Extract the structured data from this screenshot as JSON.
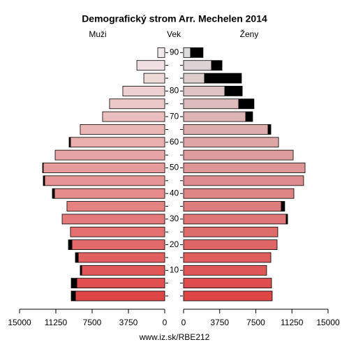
{
  "chart_data": {
    "type": "pyramid",
    "title": "Demografický strom Arr. Mechelen 2014",
    "axis_label": "Vek",
    "footer": "www.iz.sk/RBE212",
    "categories": [
      null,
      null,
      "10",
      null,
      "20",
      null,
      "30",
      null,
      "40",
      null,
      "50",
      null,
      "60",
      null,
      "70",
      null,
      "80",
      null,
      null,
      "90"
    ],
    "xlim": [
      0,
      15000
    ],
    "xticks": [
      0,
      3750,
      7500,
      11250,
      15000
    ],
    "extra_color": "#000000",
    "series": [
      {
        "name": "Muži",
        "side": "left",
        "colors": [
          "#de4646",
          "#f0eaea"
        ],
        "values": [
          9230,
          9090,
          8580,
          8940,
          9590,
          9740,
          10600,
          10100,
          11390,
          12400,
          12550,
          11320,
          9740,
          8730,
          6420,
          5700,
          4330,
          2160,
          2880,
          720
        ],
        "extra": [
          430,
          570,
          150,
          290,
          360,
          0,
          0,
          0,
          220,
          150,
          70,
          0,
          140,
          0,
          0,
          0,
          0,
          0,
          0,
          0
        ]
      },
      {
        "name": "Ženy",
        "side": "right",
        "colors": [
          "#de4646",
          "#dcdcdc"
        ],
        "values": [
          9200,
          9130,
          8620,
          9060,
          9710,
          9780,
          10650,
          10140,
          11450,
          12460,
          12610,
          11380,
          9860,
          8770,
          6450,
          5720,
          4280,
          2170,
          2900,
          720
        ],
        "extra": [
          0,
          0,
          0,
          0,
          0,
          0,
          150,
          360,
          0,
          0,
          0,
          0,
          0,
          290,
          720,
          1590,
          1810,
          3840,
          1090,
          1300
        ]
      }
    ]
  }
}
